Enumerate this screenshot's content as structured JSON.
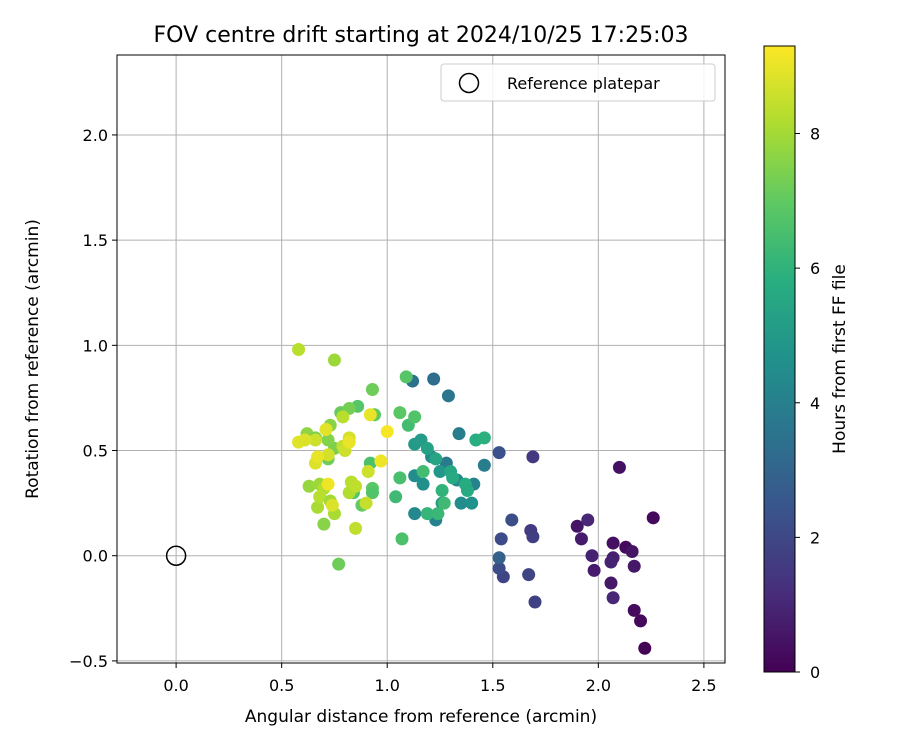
{
  "chart_data": {
    "type": "scatter",
    "title": "FOV centre drift starting at 2024/10/25 17:25:03",
    "xlabel": "Angular distance from reference (arcmin)",
    "ylabel": "Rotation from reference (arcmin)",
    "xlim": [
      -0.28,
      2.6
    ],
    "ylim": [
      -0.51,
      2.38
    ],
    "xticks": [
      0.0,
      0.5,
      1.0,
      1.5,
      2.0,
      2.5
    ],
    "xtick_labels": [
      "0.0",
      "0.5",
      "1.0",
      "1.5",
      "2.0",
      "2.5"
    ],
    "yticks": [
      -0.5,
      0.0,
      0.5,
      1.0,
      1.5,
      2.0
    ],
    "ytick_labels": [
      "−0.5",
      "0.0",
      "0.5",
      "1.0",
      "1.5",
      "2.0"
    ],
    "grid": true,
    "legend": {
      "position": "top-right",
      "entries": [
        "Reference platepar"
      ]
    },
    "reference_point": {
      "x": 0.0,
      "y": 0.0,
      "label": "Reference platepar"
    },
    "colorbar": {
      "label": "Hours from first FF file",
      "range": [
        0,
        9.3
      ],
      "ticks": [
        0,
        2,
        4,
        6,
        8
      ],
      "tick_labels": [
        "0",
        "2",
        "4",
        "6",
        "8"
      ],
      "colormap": "viridis"
    },
    "points": [
      {
        "x": 2.22,
        "y": -0.44,
        "h": 0.1
      },
      {
        "x": 2.2,
        "y": -0.31,
        "h": 0.2
      },
      {
        "x": 2.17,
        "y": -0.26,
        "h": 0.3
      },
      {
        "x": 2.26,
        "y": 0.18,
        "h": 0.2
      },
      {
        "x": 2.1,
        "y": 0.42,
        "h": 0.4
      },
      {
        "x": 2.13,
        "y": 0.04,
        "h": 0.3
      },
      {
        "x": 2.16,
        "y": 0.02,
        "h": 0.5
      },
      {
        "x": 2.17,
        "y": -0.05,
        "h": 0.6
      },
      {
        "x": 2.07,
        "y": 0.06,
        "h": 0.4
      },
      {
        "x": 2.06,
        "y": -0.13,
        "h": 0.6
      },
      {
        "x": 2.07,
        "y": -0.2,
        "h": 1.0
      },
      {
        "x": 2.07,
        "y": -0.01,
        "h": 0.8
      },
      {
        "x": 2.06,
        "y": -0.03,
        "h": 0.9
      },
      {
        "x": 1.98,
        "y": -0.07,
        "h": 0.7
      },
      {
        "x": 1.97,
        "y": 0.0,
        "h": 0.9
      },
      {
        "x": 1.92,
        "y": 0.08,
        "h": 0.7
      },
      {
        "x": 1.9,
        "y": 0.14,
        "h": 0.5
      },
      {
        "x": 1.95,
        "y": 0.17,
        "h": 1.0
      },
      {
        "x": 1.69,
        "y": 0.47,
        "h": 1.5
      },
      {
        "x": 1.68,
        "y": 0.12,
        "h": 1.6
      },
      {
        "x": 1.69,
        "y": 0.09,
        "h": 1.7
      },
      {
        "x": 1.7,
        "y": -0.22,
        "h": 1.8
      },
      {
        "x": 1.67,
        "y": -0.09,
        "h": 1.9
      },
      {
        "x": 1.59,
        "y": 0.17,
        "h": 2.2
      },
      {
        "x": 1.54,
        "y": 0.08,
        "h": 2.1
      },
      {
        "x": 1.55,
        "y": -0.1,
        "h": 1.9
      },
      {
        "x": 1.53,
        "y": -0.06,
        "h": 2.1
      },
      {
        "x": 1.53,
        "y": -0.01,
        "h": 2.9
      },
      {
        "x": 1.53,
        "y": 0.49,
        "h": 2.3
      },
      {
        "x": 1.22,
        "y": 0.84,
        "h": 3.3
      },
      {
        "x": 1.12,
        "y": 0.83,
        "h": 3.5
      },
      {
        "x": 1.29,
        "y": 0.76,
        "h": 3.6
      },
      {
        "x": 1.34,
        "y": 0.58,
        "h": 3.9
      },
      {
        "x": 1.46,
        "y": 0.43,
        "h": 3.9
      },
      {
        "x": 1.28,
        "y": 0.44,
        "h": 3.8
      },
      {
        "x": 1.41,
        "y": 0.34,
        "h": 4.1
      },
      {
        "x": 1.33,
        "y": 0.36,
        "h": 4.3
      },
      {
        "x": 1.35,
        "y": 0.25,
        "h": 4.5
      },
      {
        "x": 1.4,
        "y": 0.25,
        "h": 4.7
      },
      {
        "x": 1.26,
        "y": 0.25,
        "h": 4.9
      },
      {
        "x": 1.23,
        "y": 0.17,
        "h": 4.1
      },
      {
        "x": 1.13,
        "y": 0.2,
        "h": 4.3
      },
      {
        "x": 1.13,
        "y": 0.38,
        "h": 4.5
      },
      {
        "x": 1.17,
        "y": 0.34,
        "h": 4.6
      },
      {
        "x": 1.21,
        "y": 0.47,
        "h": 4.4
      },
      {
        "x": 1.25,
        "y": 0.4,
        "h": 4.9
      },
      {
        "x": 1.13,
        "y": 0.53,
        "h": 5.0
      },
      {
        "x": 1.16,
        "y": 0.55,
        "h": 5.1
      },
      {
        "x": 1.19,
        "y": 0.51,
        "h": 5.3
      },
      {
        "x": 1.23,
        "y": 0.46,
        "h": 5.4
      },
      {
        "x": 1.3,
        "y": 0.4,
        "h": 5.5
      },
      {
        "x": 1.31,
        "y": 0.37,
        "h": 5.6
      },
      {
        "x": 1.37,
        "y": 0.34,
        "h": 5.7
      },
      {
        "x": 1.38,
        "y": 0.31,
        "h": 5.6
      },
      {
        "x": 1.42,
        "y": 0.55,
        "h": 5.8
      },
      {
        "x": 1.46,
        "y": 0.56,
        "h": 5.9
      },
      {
        "x": 1.26,
        "y": 0.31,
        "h": 6.0
      },
      {
        "x": 1.19,
        "y": 0.2,
        "h": 6.1
      },
      {
        "x": 1.24,
        "y": 0.2,
        "h": 6.2
      },
      {
        "x": 1.27,
        "y": 0.25,
        "h": 6.3
      },
      {
        "x": 1.17,
        "y": 0.4,
        "h": 6.4
      },
      {
        "x": 1.04,
        "y": 0.28,
        "h": 6.3
      },
      {
        "x": 1.06,
        "y": 0.37,
        "h": 6.5
      },
      {
        "x": 1.07,
        "y": 0.08,
        "h": 6.6
      },
      {
        "x": 1.1,
        "y": 0.62,
        "h": 6.4
      },
      {
        "x": 1.09,
        "y": 0.85,
        "h": 6.8
      },
      {
        "x": 1.06,
        "y": 0.68,
        "h": 6.9
      },
      {
        "x": 1.13,
        "y": 0.66,
        "h": 6.7
      },
      {
        "x": 0.92,
        "y": 0.44,
        "h": 6.6
      },
      {
        "x": 0.93,
        "y": 0.32,
        "h": 6.9
      },
      {
        "x": 0.93,
        "y": 0.3,
        "h": 6.7
      },
      {
        "x": 0.88,
        "y": 0.24,
        "h": 7.0
      },
      {
        "x": 0.84,
        "y": 0.3,
        "h": 6.8
      },
      {
        "x": 0.86,
        "y": 0.71,
        "h": 6.8
      },
      {
        "x": 0.93,
        "y": 0.79,
        "h": 7.2
      },
      {
        "x": 0.94,
        "y": 0.67,
        "h": 7.0
      },
      {
        "x": 0.78,
        "y": 0.68,
        "h": 7.1
      },
      {
        "x": 0.82,
        "y": 0.7,
        "h": 7.3
      },
      {
        "x": 0.72,
        "y": 0.46,
        "h": 7.2
      },
      {
        "x": 0.75,
        "y": 0.51,
        "h": 7.4
      },
      {
        "x": 0.72,
        "y": 0.55,
        "h": 7.5
      },
      {
        "x": 0.73,
        "y": 0.62,
        "h": 7.6
      },
      {
        "x": 0.62,
        "y": 0.58,
        "h": 7.7
      },
      {
        "x": 0.66,
        "y": 0.56,
        "h": 7.4
      },
      {
        "x": 0.77,
        "y": -0.04,
        "h": 7.2
      },
      {
        "x": 0.7,
        "y": 0.15,
        "h": 7.6
      },
      {
        "x": 0.75,
        "y": 0.93,
        "h": 7.9
      },
      {
        "x": 0.58,
        "y": 0.98,
        "h": 8.3
      },
      {
        "x": 0.63,
        "y": 0.33,
        "h": 7.8
      },
      {
        "x": 0.68,
        "y": 0.34,
        "h": 7.9
      },
      {
        "x": 0.67,
        "y": 0.23,
        "h": 8.1
      },
      {
        "x": 0.7,
        "y": 0.32,
        "h": 8.2
      },
      {
        "x": 0.68,
        "y": 0.28,
        "h": 8.3
      },
      {
        "x": 0.73,
        "y": 0.26,
        "h": 8.0
      },
      {
        "x": 0.75,
        "y": 0.2,
        "h": 8.1
      },
      {
        "x": 0.82,
        "y": 0.3,
        "h": 8.2
      },
      {
        "x": 0.83,
        "y": 0.35,
        "h": 8.3
      },
      {
        "x": 0.85,
        "y": 0.33,
        "h": 8.4
      },
      {
        "x": 0.85,
        "y": 0.13,
        "h": 8.4
      },
      {
        "x": 0.9,
        "y": 0.25,
        "h": 8.5
      },
      {
        "x": 0.91,
        "y": 0.4,
        "h": 8.6
      },
      {
        "x": 0.79,
        "y": 0.52,
        "h": 8.5
      },
      {
        "x": 0.82,
        "y": 0.56,
        "h": 8.7
      },
      {
        "x": 0.8,
        "y": 0.5,
        "h": 8.6
      },
      {
        "x": 0.79,
        "y": 0.66,
        "h": 8.3
      },
      {
        "x": 0.72,
        "y": 0.48,
        "h": 8.7
      },
      {
        "x": 0.66,
        "y": 0.44,
        "h": 8.8
      },
      {
        "x": 0.66,
        "y": 0.55,
        "h": 8.6
      },
      {
        "x": 0.58,
        "y": 0.54,
        "h": 8.9
      },
      {
        "x": 0.61,
        "y": 0.55,
        "h": 8.8
      },
      {
        "x": 0.92,
        "y": 0.67,
        "h": 9.0
      },
      {
        "x": 0.97,
        "y": 0.45,
        "h": 9.1
      },
      {
        "x": 1.0,
        "y": 0.59,
        "h": 9.2
      },
      {
        "x": 0.72,
        "y": 0.34,
        "h": 9.1
      },
      {
        "x": 0.67,
        "y": 0.47,
        "h": 9.0
      },
      {
        "x": 0.71,
        "y": 0.6,
        "h": 8.9
      },
      {
        "x": 0.82,
        "y": 0.54,
        "h": 9.0
      },
      {
        "x": 0.74,
        "y": 0.24,
        "h": 8.8
      }
    ]
  }
}
